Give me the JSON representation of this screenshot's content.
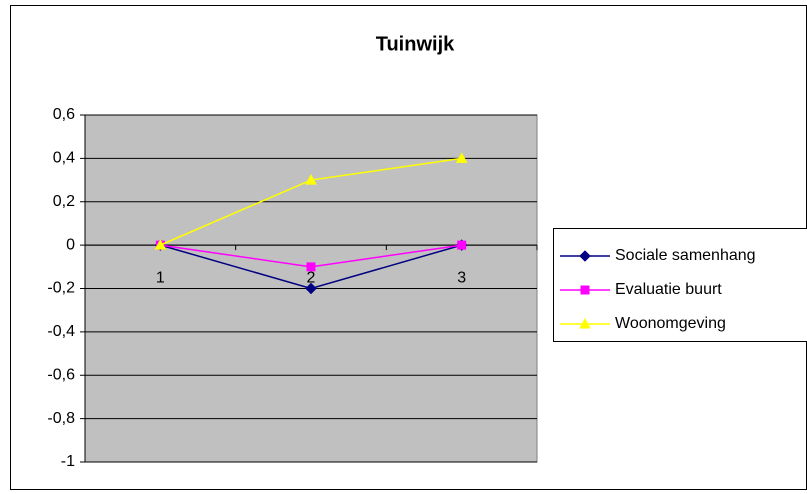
{
  "chart_data": {
    "type": "line",
    "title": "Tuinwijk",
    "categories": [
      "1",
      "2",
      "3"
    ],
    "series": [
      {
        "name": "Sociale samenhang",
        "color": "#000080",
        "marker": "diamond",
        "values": [
          0,
          -0.2,
          0
        ]
      },
      {
        "name": "Evaluatie buurt",
        "color": "#ff00ff",
        "marker": "square",
        "values": [
          0,
          -0.1,
          0
        ]
      },
      {
        "name": "Woonomgeving",
        "color": "#ffff00",
        "marker": "triangle",
        "values": [
          0,
          0.3,
          0.4
        ]
      }
    ],
    "ylim": [
      -1,
      0.6
    ],
    "yticks": [
      {
        "value": -1,
        "label": "-1"
      },
      {
        "value": -0.8,
        "label": "-0,8"
      },
      {
        "value": -0.6,
        "label": "-0,6"
      },
      {
        "value": -0.4,
        "label": "-0,4"
      },
      {
        "value": -0.2,
        "label": "-0,2"
      },
      0,
      {
        "value": 0.2,
        "label": "0,2"
      },
      {
        "value": 0.4,
        "label": "0,4"
      },
      {
        "value": 0.6,
        "label": "0,6"
      }
    ],
    "grid": true,
    "plot_background": "#c0c0c0",
    "legend": "right"
  }
}
